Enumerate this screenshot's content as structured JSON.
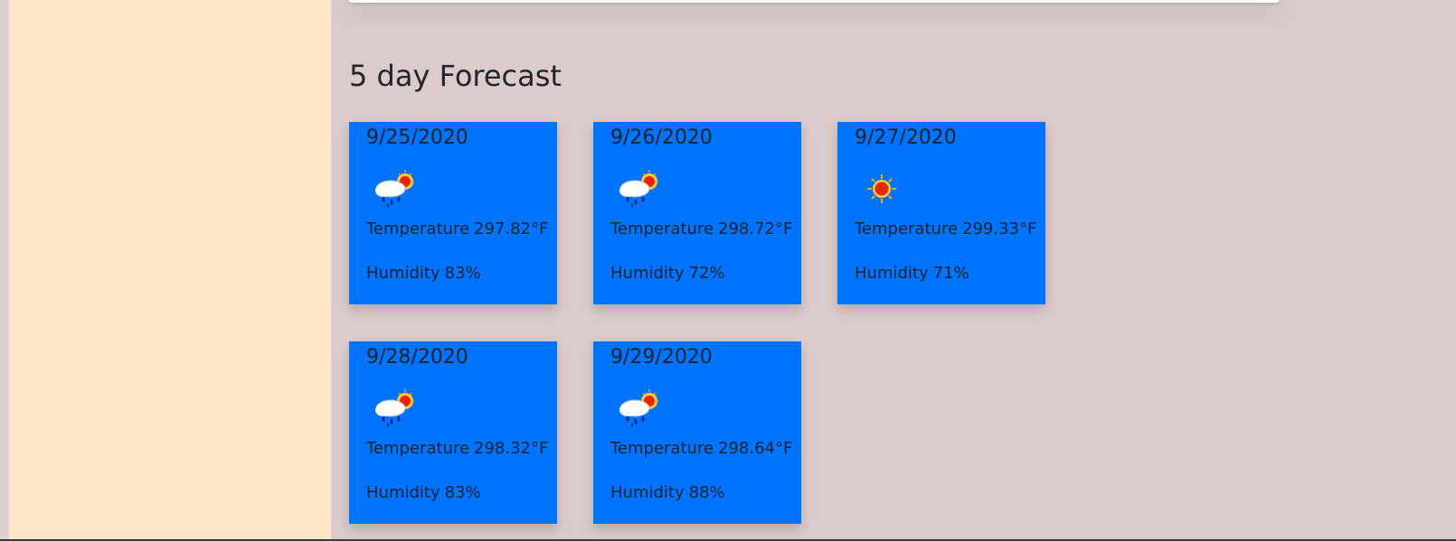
{
  "forecast": {
    "title": "5 day Forecast",
    "temperature_label": "Temperature",
    "humidity_label": "Humidity",
    "days": [
      {
        "date": "9/25/2020",
        "icon": "rain-sun-icon",
        "temperature": "297.82°F",
        "humidity": "83%"
      },
      {
        "date": "9/26/2020",
        "icon": "rain-sun-icon",
        "temperature": "298.72°F",
        "humidity": "72%"
      },
      {
        "date": "9/27/2020",
        "icon": "sun-icon",
        "temperature": "299.33°F",
        "humidity": "71%"
      },
      {
        "date": "9/28/2020",
        "icon": "rain-sun-icon",
        "temperature": "298.32°F",
        "humidity": "83%"
      },
      {
        "date": "9/29/2020",
        "icon": "rain-sun-icon",
        "temperature": "298.64°F",
        "humidity": "88%"
      }
    ]
  },
  "colors": {
    "page_background": "#dccbcb",
    "sidebar_background": "#ffe5c6",
    "card_background": "#0074fe"
  }
}
